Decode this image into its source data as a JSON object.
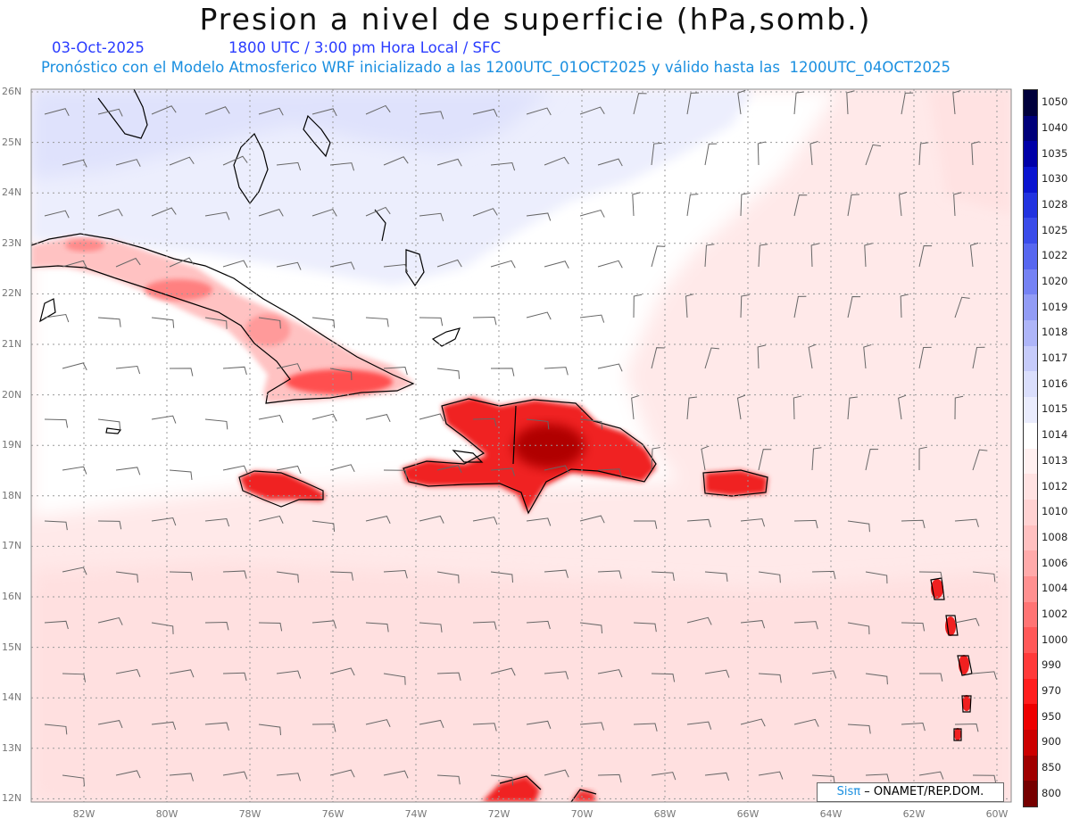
{
  "title": "Presion a nivel de superficie (hPa,somb.)",
  "date": "03-Oct-2025",
  "time_line": "1800 UTC / 3:00 pm Hora Local / SFC",
  "description": "Pronóstico con el Modelo Atmosferico WRF inicializado a las 1200UTC_01OCT2025 y válido hasta las  1200UTC_04OCT2025",
  "lat_labels": [
    "26N",
    "25N",
    "24N",
    "23N",
    "22N",
    "21N",
    "20N",
    "19N",
    "18N",
    "17N",
    "16N",
    "15N",
    "14N",
    "13N",
    "12N"
  ],
  "lon_labels": [
    "82W",
    "80W",
    "78W",
    "76W",
    "74W",
    "72W",
    "70W",
    "68W",
    "66W",
    "64W",
    "62W",
    "60W"
  ],
  "colorbar": {
    "levels": [
      "1050",
      "1040",
      "1035",
      "1030",
      "1028",
      "1025",
      "1022",
      "1020",
      "1019",
      "1018",
      "1017",
      "1016",
      "1015",
      "1014",
      "1013",
      "1012",
      "1010",
      "1008",
      "1006",
      "1004",
      "1002",
      "1000",
      "990",
      "970",
      "950",
      "900",
      "850",
      "800"
    ],
    "colors": [
      "#00003c",
      "#00007a",
      "#0000a8",
      "#0a14d0",
      "#2233e0",
      "#3a4cea",
      "#5767f0",
      "#7582f4",
      "#929cf6",
      "#aeb5f8",
      "#c6cbfa",
      "#dadefc",
      "#eaecfd",
      "#ffffff",
      "#fff0f0",
      "#ffe2e2",
      "#ffd2d2",
      "#ffc0c0",
      "#ffaaaa",
      "#ff9090",
      "#ff7474",
      "#ff5858",
      "#ff3a3a",
      "#ff1e1e",
      "#ee0000",
      "#cc0000",
      "#a00000",
      "#760000"
    ]
  },
  "credit": {
    "logo": "Sisπ",
    "text": "– ONAMET/REP.DOM."
  }
}
